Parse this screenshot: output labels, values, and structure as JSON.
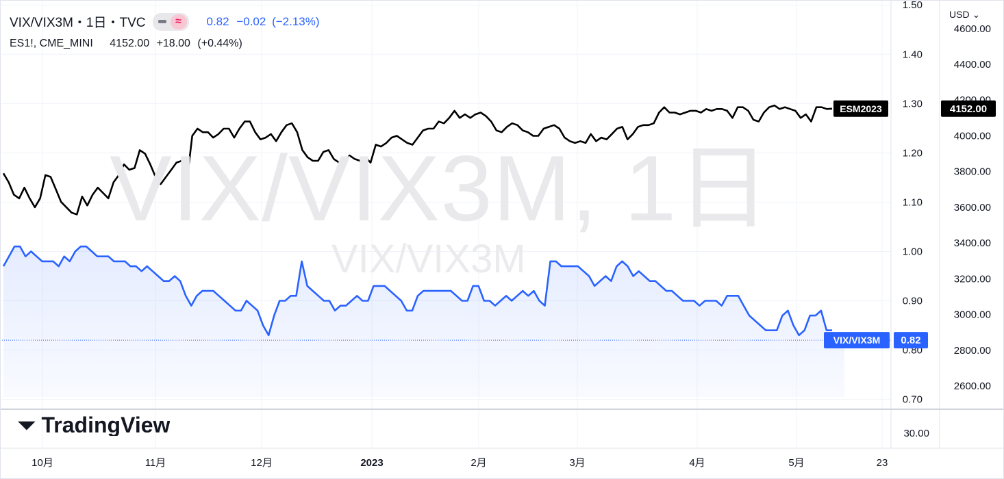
{
  "legend": {
    "symbol": "VIX/VIX3M・1日・TVC",
    "price": "0.82",
    "change": "−0.02",
    "change_pct": "(−2.13%)",
    "secondary_symbol": "ES1!, CME_MINI",
    "secondary_price": "4152.00",
    "secondary_change": "+18.00",
    "secondary_change_pct": "(+0.44%)"
  },
  "currency_label": "USD",
  "watermark": {
    "main": "VIX/VIX3M, 1日",
    "small": "VIX/VIX3M"
  },
  "logo_text": "TradingView",
  "colors": {
    "ratio_line": "#2962ff",
    "es_line": "#000000",
    "grid": "#f0f3fa",
    "axis_text": "#131722"
  },
  "chart_data": [
    {
      "type": "area",
      "name": "VIX/VIX3M",
      "scale": "left-inner",
      "ylim": [
        0.68,
        1.51
      ],
      "yticks": [
        "1.50",
        "1.40",
        "1.30",
        "1.20",
        "1.10",
        "1.00",
        "0.90",
        "0.80",
        "0.70"
      ],
      "ytick_values": [
        1.5,
        1.4,
        1.3,
        1.2,
        1.1,
        1.0,
        0.9,
        0.8,
        0.7
      ],
      "last_label": "VIX/VIX3M",
      "last_value_label": "0.82",
      "last_value": 0.82,
      "values": [
        0.97,
        0.99,
        1.01,
        1.01,
        0.99,
        1.0,
        0.99,
        0.98,
        0.98,
        0.98,
        0.97,
        0.99,
        0.98,
        1.0,
        1.01,
        1.01,
        1.0,
        0.99,
        0.99,
        0.99,
        0.98,
        0.98,
        0.98,
        0.97,
        0.97,
        0.96,
        0.97,
        0.96,
        0.95,
        0.94,
        0.94,
        0.95,
        0.94,
        0.91,
        0.89,
        0.91,
        0.92,
        0.92,
        0.92,
        0.91,
        0.9,
        0.89,
        0.88,
        0.88,
        0.9,
        0.89,
        0.88,
        0.85,
        0.83,
        0.87,
        0.9,
        0.9,
        0.91,
        0.91,
        0.98,
        0.93,
        0.92,
        0.91,
        0.9,
        0.9,
        0.88,
        0.89,
        0.89,
        0.9,
        0.91,
        0.9,
        0.9,
        0.93,
        0.93,
        0.93,
        0.92,
        0.91,
        0.9,
        0.88,
        0.88,
        0.91,
        0.92,
        0.92,
        0.92,
        0.92,
        0.92,
        0.92,
        0.91,
        0.9,
        0.9,
        0.93,
        0.93,
        0.9,
        0.9,
        0.89,
        0.9,
        0.91,
        0.9,
        0.91,
        0.92,
        0.91,
        0.92,
        0.9,
        0.89,
        0.98,
        0.98,
        0.97,
        0.97,
        0.97,
        0.97,
        0.96,
        0.95,
        0.93,
        0.94,
        0.95,
        0.94,
        0.97,
        0.98,
        0.97,
        0.95,
        0.96,
        0.95,
        0.94,
        0.94,
        0.93,
        0.92,
        0.92,
        0.91,
        0.9,
        0.9,
        0.9,
        0.89,
        0.9,
        0.9,
        0.9,
        0.89,
        0.91,
        0.91,
        0.91,
        0.89,
        0.87,
        0.86,
        0.85,
        0.84,
        0.84,
        0.84,
        0.87,
        0.88,
        0.85,
        0.83,
        0.84,
        0.87,
        0.87,
        0.88,
        0.84,
        0.84
      ],
      "projected_value": 0.82
    },
    {
      "type": "line",
      "name": "ESM2023",
      "scale": "right",
      "ylim": [
        2470,
        4760
      ],
      "yticks": [
        "4600.00",
        "4400.00",
        "4200.00",
        "4000.00",
        "3800.00",
        "3600.00",
        "3400.00",
        "3200.00",
        "3000.00",
        "2800.00",
        "2600.00"
      ],
      "ytick_values": [
        4600,
        4400,
        4200,
        4000,
        3800,
        3600,
        3400,
        3200,
        3000,
        2800,
        2600
      ],
      "last_label": "ESM2023",
      "last_value_label": "4152.00",
      "last_value": 4152,
      "values": [
        3790,
        3740,
        3670,
        3650,
        3710,
        3650,
        3600,
        3650,
        3780,
        3770,
        3700,
        3630,
        3600,
        3570,
        3560,
        3660,
        3610,
        3670,
        3710,
        3680,
        3650,
        3740,
        3780,
        3840,
        3810,
        3820,
        3920,
        3900,
        3840,
        3770,
        3730,
        3770,
        3810,
        3850,
        3860,
        3750,
        4000,
        4040,
        4020,
        4020,
        3990,
        4010,
        4040,
        4040,
        3990,
        4040,
        4080,
        4080,
        4020,
        3980,
        3990,
        4010,
        3970,
        4020,
        4060,
        4070,
        4020,
        3920,
        3880,
        3860,
        3860,
        3910,
        3920,
        3870,
        3850,
        3850,
        3890,
        3870,
        3860,
        3880,
        3850,
        3950,
        3940,
        3960,
        3990,
        4000,
        3980,
        3960,
        3950,
        3990,
        4030,
        4040,
        4040,
        4080,
        4070,
        4100,
        4140,
        4100,
        4120,
        4100,
        4120,
        4130,
        4110,
        4080,
        4030,
        4020,
        4050,
        4070,
        4060,
        4030,
        4020,
        4000,
        4000,
        4040,
        4050,
        4060,
        4040,
        3990,
        3970,
        3960,
        3970,
        3960,
        4010,
        3970,
        3990,
        3980,
        4010,
        4040,
        4050,
        3980,
        4010,
        4050,
        4060,
        4060,
        4070,
        4130,
        4160,
        4130,
        4130,
        4120,
        4130,
        4140,
        4140,
        4130,
        4150,
        4140,
        4150,
        4150,
        4140,
        4100,
        4160,
        4160,
        4140,
        4090,
        4080,
        4130,
        4160,
        4170,
        4150,
        4160,
        4150,
        4140,
        4100,
        4120,
        4080,
        4160,
        4160,
        4150,
        4152
      ]
    }
  ],
  "bottom_pane": {
    "ytick": "30.00"
  },
  "x_axis": {
    "labels": [
      "10月",
      "11月",
      "12月",
      "2023",
      "2月",
      "3月",
      "4月",
      "5月",
      "23"
    ],
    "bold": [
      false,
      false,
      false,
      true,
      false,
      false,
      false,
      false,
      false
    ]
  }
}
